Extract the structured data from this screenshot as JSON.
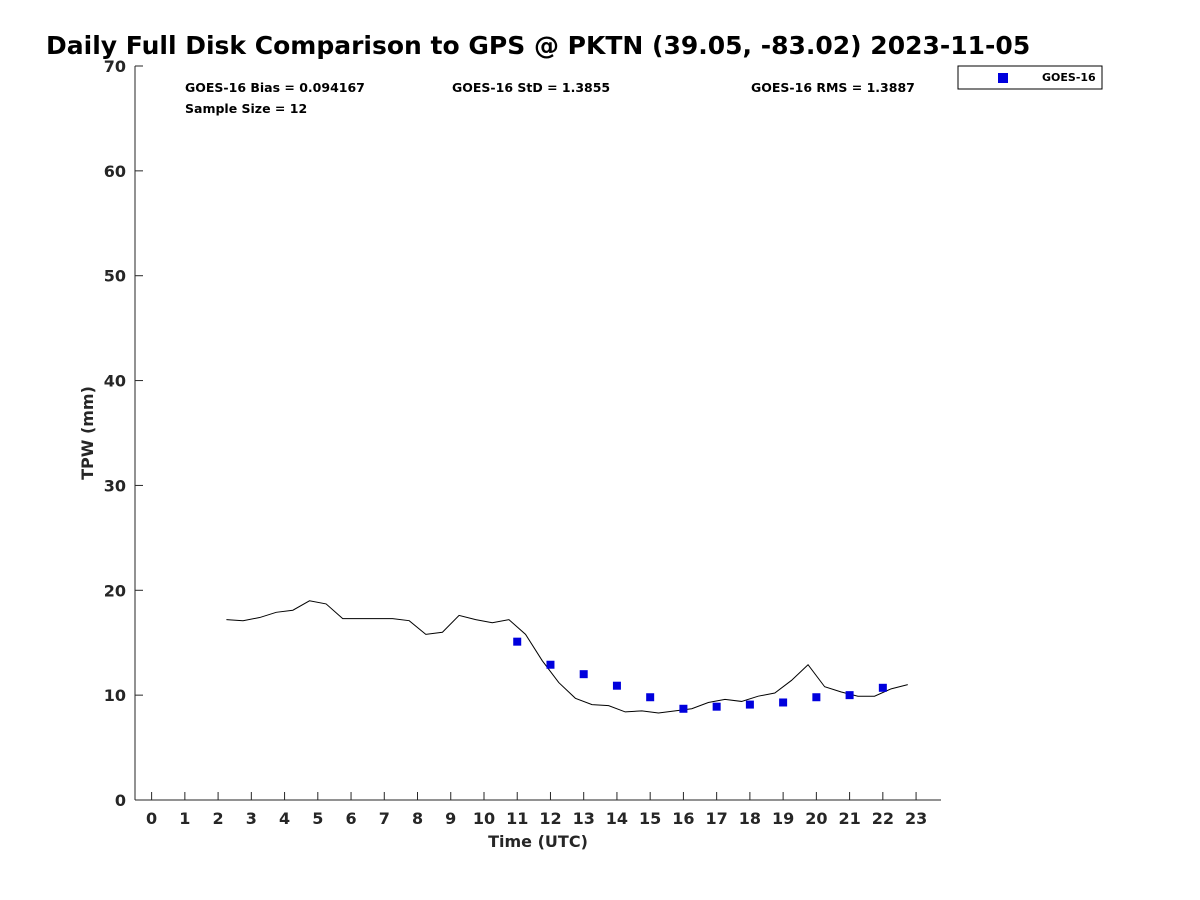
{
  "chart_data": {
    "type": "scatter",
    "title": "Daily Full Disk Comparison to GPS @ PKTN (39.05, -83.02) 2023-11-05",
    "xlabel": "Time (UTC)",
    "ylabel": "TPW (mm)",
    "xlim": [
      -0.5,
      23.75
    ],
    "ylim": [
      0,
      70
    ],
    "x_ticks": [
      0,
      1,
      2,
      3,
      4,
      5,
      6,
      7,
      8,
      9,
      10,
      11,
      12,
      13,
      14,
      15,
      16,
      17,
      18,
      19,
      20,
      21,
      22,
      23
    ],
    "y_ticks": [
      0,
      10,
      20,
      30,
      40,
      50,
      60,
      70
    ],
    "grid": false,
    "legend_position": "outside-top-right",
    "stats": {
      "bias": "GOES-16 Bias = 0.094167",
      "std": "GOES-16 StD = 1.3855",
      "rms": "GOES-16 RMS = 1.3887",
      "sample": "Sample Size = 12"
    },
    "series": [
      {
        "name": "GOES-16",
        "style": "marker",
        "marker": "square",
        "color": "#0000dd",
        "x": [
          11,
          12,
          13,
          14,
          15,
          16,
          17,
          18,
          19,
          20,
          21,
          22
        ],
        "y": [
          15.1,
          12.9,
          12.0,
          10.9,
          9.8,
          8.7,
          8.9,
          9.1,
          9.3,
          9.8,
          10.0,
          10.7
        ]
      },
      {
        "style": "line",
        "color": "#000000",
        "x": [
          2.25,
          2.75,
          3.25,
          3.75,
          4.25,
          4.75,
          5.25,
          5.75,
          6.25,
          6.75,
          7.25,
          7.75,
          8.25,
          8.75,
          9.25,
          9.75,
          10.25,
          10.75,
          11.25,
          11.75,
          12.25,
          12.75,
          13.25,
          13.75,
          14.25,
          14.75,
          15.25,
          15.75,
          16.25,
          16.75,
          17.25,
          17.75,
          18.25,
          18.75,
          19.25,
          19.75,
          20.25,
          20.75,
          21.25,
          21.75,
          22.25,
          22.75
        ],
        "y": [
          17.2,
          17.1,
          17.4,
          17.9,
          18.1,
          19.0,
          18.7,
          17.3,
          17.3,
          17.3,
          17.3,
          17.1,
          15.8,
          16.0,
          17.6,
          17.2,
          16.9,
          17.2,
          15.8,
          13.3,
          11.2,
          9.7,
          9.1,
          9.0,
          8.4,
          8.5,
          8.3,
          8.5,
          8.7,
          9.3,
          9.6,
          9.4,
          9.9,
          10.2,
          11.4,
          12.9,
          10.8,
          10.3,
          9.9,
          9.9,
          10.6,
          11.0
        ]
      }
    ]
  }
}
